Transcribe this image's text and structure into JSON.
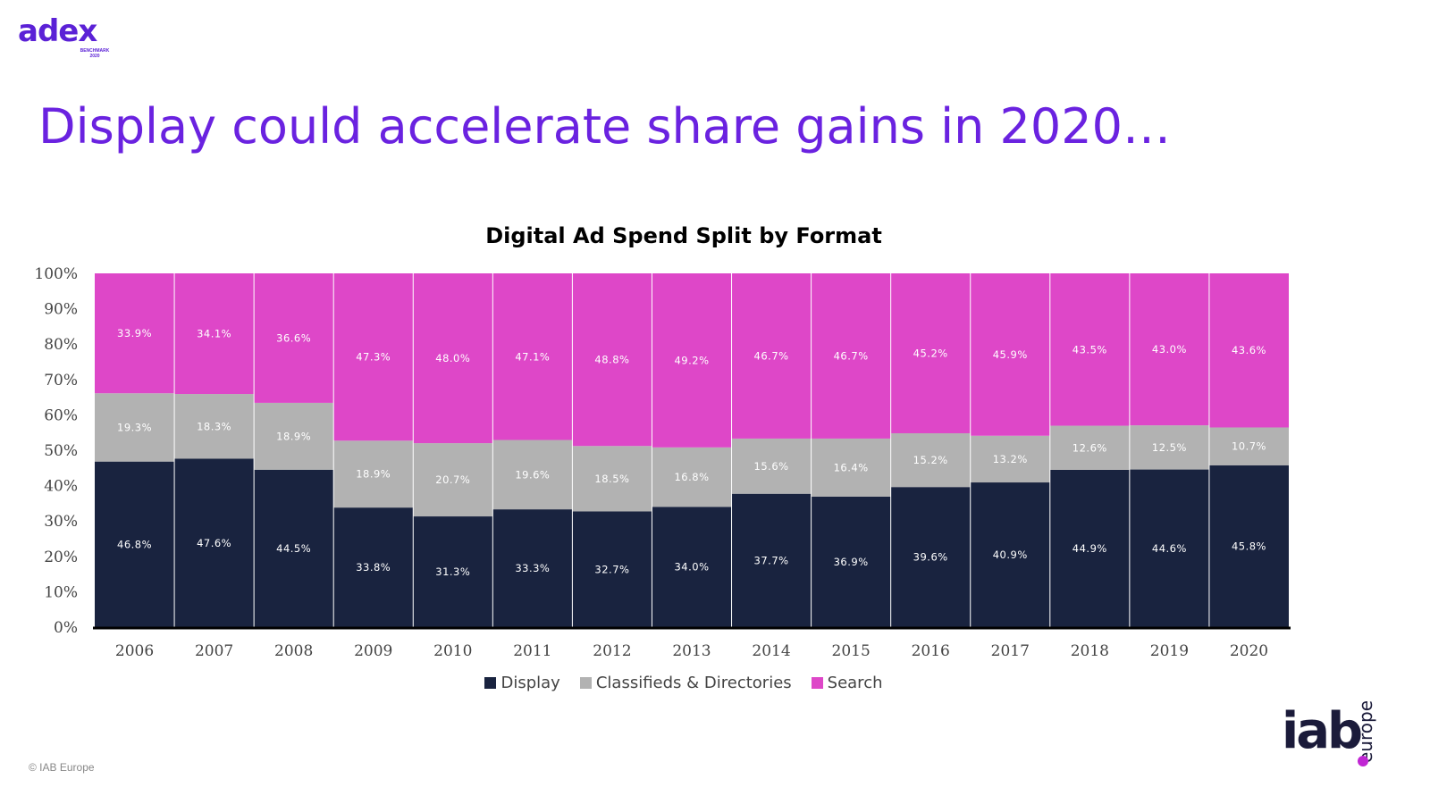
{
  "branding": {
    "adex_logo": "adex",
    "adex_sub": "BENCHMARK 2020",
    "iab_logo": "iab",
    "iab_logo_suffix": "europe",
    "copyright": "© IAB Europe"
  },
  "slide": {
    "title": "Display could accelerate share gains in 2020…"
  },
  "colors": {
    "display": "#19233f",
    "classifieds": "#b2b2b2",
    "search": "#de47c8",
    "title": "#6a22e0"
  },
  "chart_data": {
    "type": "bar",
    "stacked": true,
    "title": "Digital Ad Spend Split by Format",
    "categories": [
      "2006",
      "2007",
      "2008",
      "2009",
      "2010",
      "2011",
      "2012",
      "2013",
      "2014",
      "2015",
      "2016",
      "2017",
      "2018",
      "2019",
      "2020"
    ],
    "ylim": [
      0,
      100
    ],
    "yticks": [
      "0%",
      "10%",
      "20%",
      "30%",
      "40%",
      "50%",
      "60%",
      "70%",
      "80%",
      "90%",
      "100%"
    ],
    "legend_position": "bottom",
    "grid": false,
    "series": [
      {
        "name": "Display",
        "values": [
          46.8,
          47.6,
          44.5,
          33.8,
          31.3,
          33.3,
          32.7,
          34.0,
          37.7,
          36.9,
          39.6,
          40.9,
          44.9,
          44.6,
          45.8
        ],
        "labels": [
          "46.8%",
          "47.6%",
          "44.5%",
          "33.8%",
          "31.3%",
          "33.3%",
          "32.7%",
          "34.0%",
          "37.7%",
          "36.9%",
          "39.6%",
          "40.9%",
          "44.9%",
          "44.6%",
          "45.8%"
        ]
      },
      {
        "name": "Classifieds & Directories",
        "values": [
          19.3,
          18.3,
          18.9,
          18.9,
          20.7,
          19.6,
          18.5,
          16.8,
          15.6,
          16.4,
          15.2,
          13.2,
          12.6,
          12.5,
          10.7
        ],
        "labels": [
          "19.3%",
          "18.3%",
          "18.9%",
          "18.9%",
          "20.7%",
          "19.6%",
          "18.5%",
          "16.8%",
          "15.6%",
          "16.4%",
          "15.2%",
          "13.2%",
          "12.6%",
          "12.5%",
          "10.7%"
        ]
      },
      {
        "name": "Search",
        "values": [
          33.9,
          34.1,
          36.6,
          47.3,
          48.0,
          47.1,
          48.8,
          49.2,
          46.7,
          46.7,
          45.2,
          45.9,
          43.5,
          43.0,
          43.6
        ],
        "labels": [
          "33.9%",
          "34.1%",
          "36.6%",
          "47.3%",
          "48.0%",
          "47.1%",
          "48.8%",
          "49.2%",
          "46.7%",
          "46.7%",
          "45.2%",
          "45.9%",
          "43.5%",
          "43.0%",
          "43.6%"
        ]
      }
    ]
  }
}
